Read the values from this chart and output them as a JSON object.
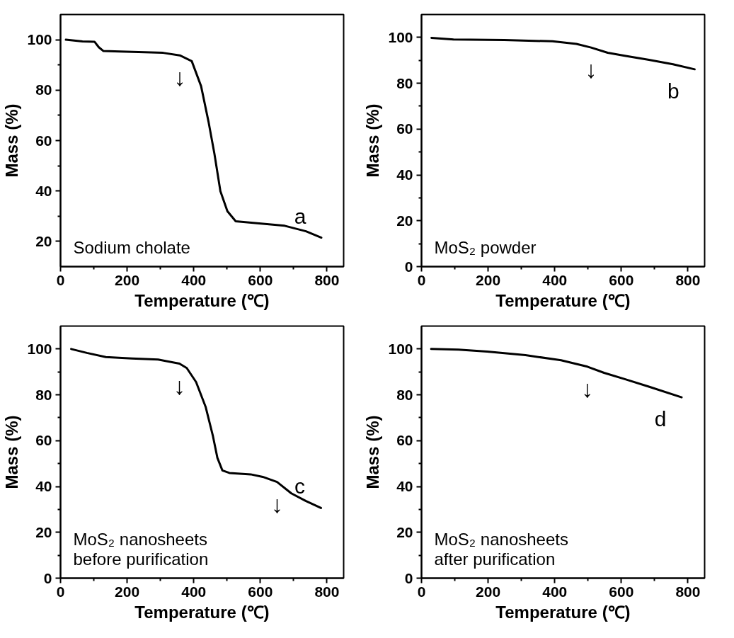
{
  "chart_data": [
    {
      "type": "line",
      "xlabel": "Temperature (℃)",
      "ylabel": "Mass (%)",
      "color": "#000000",
      "grid": false,
      "xlim": [
        0,
        850
      ],
      "ylim": [
        10,
        110
      ],
      "xticks": [
        0,
        200,
        400,
        600,
        800
      ],
      "yticks": [
        20,
        40,
        60,
        80,
        100
      ],
      "x": [
        16,
        66,
        102,
        115,
        129,
        179,
        308,
        358,
        394,
        422,
        444,
        462,
        480,
        501,
        526,
        608,
        673,
        737,
        783
      ],
      "values": [
        100,
        99.3,
        99.2,
        97,
        95.5,
        95.3,
        94.8,
        93.8,
        91.5,
        81.6,
        67.7,
        54.8,
        39.9,
        32,
        28,
        27,
        26.2,
        24,
        21.5
      ],
      "annotations": [
        "Sodium cholate",
        "a",
        {
          "text": "↓",
          "x": 358,
          "y": 93.8
        }
      ]
    },
    {
      "type": "line",
      "xlabel": "Temperature (℃)",
      "ylabel": "Mass (%)",
      "color": "#000000",
      "grid": false,
      "xlim": [
        0,
        850
      ],
      "ylim": [
        0,
        110
      ],
      "xticks": [
        0,
        200,
        400,
        600,
        800
      ],
      "yticks": [
        0,
        20,
        40,
        60,
        80,
        100
      ],
      "x": [
        30,
        96,
        248,
        393,
        465,
        509,
        559,
        610,
        683,
        755,
        820
      ],
      "values": [
        99.8,
        99.1,
        98.9,
        98.3,
        97.2,
        95.6,
        93.3,
        92,
        90.2,
        88.3,
        86.1
      ],
      "annotations": [
        "MoS₂ powder",
        "b",
        {
          "text": "↓",
          "x": 509,
          "y": 95.6
        }
      ]
    },
    {
      "type": "line",
      "xlabel": "Temperature (℃)",
      "ylabel": "Mass (%)",
      "color": "#000000",
      "grid": false,
      "xlim": [
        0,
        850
      ],
      "ylim": [
        0,
        110
      ],
      "xticks": [
        0,
        200,
        400,
        600,
        800
      ],
      "yticks": [
        0,
        20,
        40,
        60,
        80,
        100
      ],
      "x": [
        32,
        79,
        136,
        214,
        293,
        357,
        379,
        407,
        436,
        457,
        471,
        486,
        507,
        571,
        607,
        650,
        693,
        736,
        782
      ],
      "values": [
        100,
        98.3,
        96.5,
        95.9,
        95.4,
        93.6,
        91.7,
        85.6,
        74.6,
        62.4,
        52.5,
        47,
        45.9,
        45.3,
        44.2,
        42,
        37,
        33.7,
        30.6
      ],
      "annotations": [
        "MoS₂ nanosheets\nbefore purification",
        "c",
        {
          "text": "↓",
          "x": 357,
          "y": 93.6
        },
        {
          "text": "↓",
          "x": 650,
          "y": 42
        }
      ]
    },
    {
      "type": "line",
      "xlabel": "Temperature (℃)",
      "ylabel": "Mass (%)",
      "color": "#000000",
      "grid": false,
      "xlim": [
        0,
        850
      ],
      "ylim": [
        0,
        110
      ],
      "xticks": [
        0,
        200,
        400,
        600,
        800
      ],
      "yticks": [
        0,
        20,
        40,
        60,
        80,
        100
      ],
      "x": [
        29,
        111,
        197,
        312,
        419,
        498,
        548,
        612,
        684,
        781
      ],
      "values": [
        100,
        99.7,
        98.9,
        97.3,
        95.1,
        92.3,
        89.6,
        86.8,
        83.5,
        78.9
      ],
      "annotations": [
        "MoS₂ nanosheets\nafter purification",
        "d",
        {
          "text": "↓",
          "x": 498,
          "y": 92.3
        }
      ]
    }
  ]
}
